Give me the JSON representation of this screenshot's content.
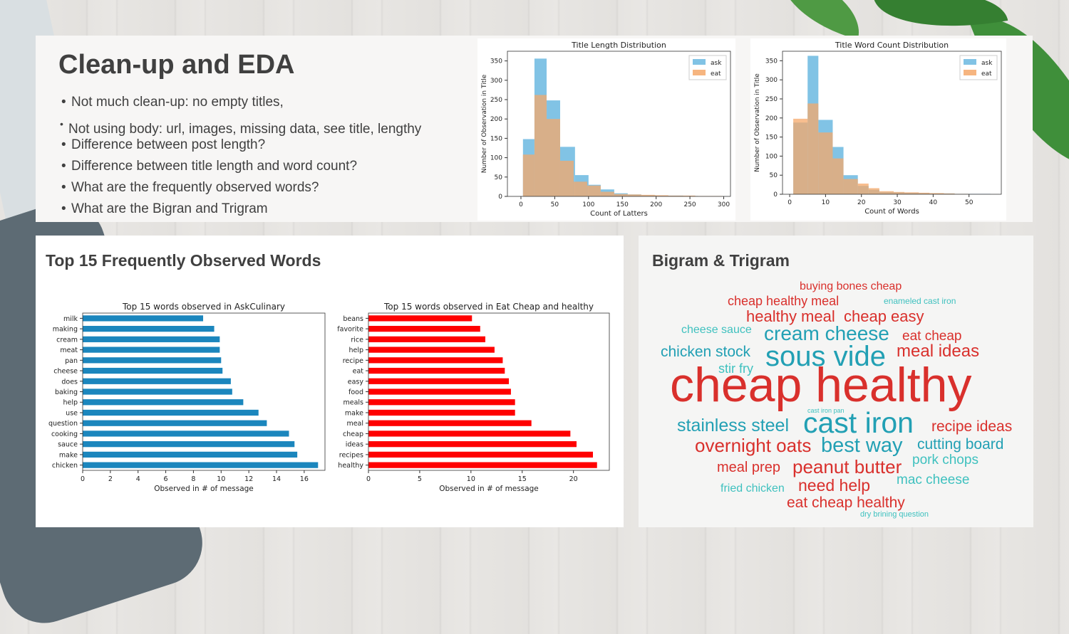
{
  "slide": {
    "title": "Clean-up and EDA",
    "bullets": [
      "Not much clean-up: no empty titles,",
      "Not using body:  url, images, missing data, see title, lengthy",
      "Difference between post length?",
      "Difference between title length and word count?",
      "What are the frequently observed words?",
      "What are the Bigran and Trigram"
    ]
  },
  "sections": {
    "words_title": "Top 15 Frequently Observed Words",
    "bigram_title": "Bigram & Trigram"
  },
  "colors": {
    "ask": "#6bb9e0",
    "eat": "#f5a86a",
    "askculinary_bar": "#1b86bd",
    "eatcheap_bar": "#ff0000",
    "cloud_red": "#d9302c",
    "cloud_teal": "#22a0b4"
  },
  "chart_data": [
    {
      "type": "bar",
      "title": "Title Length Distribution",
      "xlabel": "Count of Latters",
      "ylabel": "Number of Observation in Title",
      "xlim": [
        -20,
        310
      ],
      "ylim": [
        0,
        375
      ],
      "xticks": [
        0,
        50,
        100,
        150,
        200,
        250,
        300
      ],
      "yticks": [
        0,
        50,
        100,
        150,
        200,
        250,
        300,
        350
      ],
      "legend": "top-right",
      "series": [
        {
          "name": "ask",
          "bins": [
            [
              3,
              20,
              148
            ],
            [
              20,
              38,
              356
            ],
            [
              38,
              58,
              248
            ],
            [
              58,
              80,
              128
            ],
            [
              80,
              100,
              55
            ],
            [
              100,
              118,
              30
            ],
            [
              118,
              138,
              18
            ],
            [
              138,
              158,
              8
            ],
            [
              158,
              178,
              5
            ],
            [
              178,
              200,
              3
            ],
            [
              200,
              220,
              2
            ],
            [
              220,
              240,
              2
            ],
            [
              240,
              262,
              1
            ]
          ]
        },
        {
          "name": "eat",
          "bins": [
            [
              3,
              20,
              108
            ],
            [
              20,
              38,
              262
            ],
            [
              38,
              58,
              200
            ],
            [
              58,
              78,
              92
            ],
            [
              78,
              98,
              38
            ],
            [
              98,
              118,
              28
            ],
            [
              118,
              138,
              12
            ],
            [
              138,
              158,
              6
            ],
            [
              158,
              178,
              5
            ],
            [
              178,
              198,
              4
            ],
            [
              198,
              218,
              3
            ],
            [
              218,
              238,
              2
            ],
            [
              238,
              258,
              2
            ],
            [
              258,
              278,
              1
            ],
            [
              278,
              298,
              1
            ]
          ]
        }
      ]
    },
    {
      "type": "bar",
      "title": "Title Word Count Distribution",
      "xlabel": "Count of Words",
      "ylabel": "Number of Observation in Title",
      "xlim": [
        -2,
        59
      ],
      "ylim": [
        0,
        375
      ],
      "xticks": [
        0,
        10,
        20,
        30,
        40,
        50
      ],
      "yticks": [
        0,
        50,
        100,
        150,
        200,
        250,
        300,
        350
      ],
      "legend": "top-right",
      "series": [
        {
          "name": "ask",
          "bins": [
            [
              1,
              5,
              188
            ],
            [
              5,
              8,
              363
            ],
            [
              8,
              12,
              195
            ],
            [
              12,
              15,
              124
            ],
            [
              15,
              19,
              50
            ],
            [
              19,
              22,
              22
            ],
            [
              22,
              25,
              12
            ],
            [
              25,
              29,
              6
            ],
            [
              29,
              32,
              5
            ],
            [
              32,
              36,
              4
            ],
            [
              36,
              39,
              3
            ],
            [
              39,
              43,
              2
            ],
            [
              43,
              46,
              2
            ],
            [
              46,
              50,
              1
            ],
            [
              50,
              53,
              1
            ],
            [
              53,
              56,
              1
            ]
          ]
        },
        {
          "name": "eat",
          "bins": [
            [
              1,
              5,
              198
            ],
            [
              5,
              8,
              238
            ],
            [
              8,
              12,
              162
            ],
            [
              12,
              15,
              94
            ],
            [
              15,
              19,
              40
            ],
            [
              19,
              22,
              28
            ],
            [
              22,
              25,
              16
            ],
            [
              25,
              29,
              8
            ],
            [
              29,
              32,
              6
            ],
            [
              32,
              36,
              5
            ],
            [
              36,
              39,
              4
            ],
            [
              39,
              43,
              3
            ],
            [
              43,
              46,
              2
            ],
            [
              46,
              50,
              1
            ]
          ]
        }
      ]
    },
    {
      "type": "bar",
      "orientation": "horizontal",
      "title": "Top 15 words observed in AskCulinary",
      "xlabel": "Observed in # of message",
      "xlim": [
        0,
        17.5
      ],
      "xticks": [
        0,
        2,
        4,
        6,
        8,
        10,
        12,
        14,
        16
      ],
      "categories": [
        "milk",
        "making",
        "cream",
        "meat",
        "pan",
        "cheese",
        "does",
        "baking",
        "help",
        "use",
        "question",
        "cooking",
        "sauce",
        "make",
        "chicken"
      ],
      "values": [
        8.7,
        9.5,
        9.9,
        9.9,
        10.0,
        10.1,
        10.7,
        10.8,
        11.6,
        12.7,
        13.3,
        14.9,
        15.3,
        15.5,
        17.0
      ]
    },
    {
      "type": "bar",
      "orientation": "horizontal",
      "title": "Top 15 words observed in Eat Cheap and healthy",
      "xlabel": "Observed in # of message",
      "xlim": [
        0,
        23.5
      ],
      "xticks": [
        0,
        5,
        10,
        15,
        20
      ],
      "categories": [
        "beans",
        "favorite",
        "rice",
        "help",
        "recipe",
        "eat",
        "easy",
        "food",
        "meals",
        "make",
        "meal",
        "cheap",
        "ideas",
        "recipes",
        "healthy"
      ],
      "values": [
        10.1,
        10.9,
        11.4,
        12.3,
        13.1,
        13.3,
        13.7,
        13.9,
        14.3,
        14.3,
        15.9,
        19.7,
        20.3,
        21.9,
        22.3
      ]
    }
  ],
  "wordcloud": [
    {
      "text": "buying bones cheap",
      "color": "red"
    },
    {
      "text": "cheap healthy meal",
      "color": "red"
    },
    {
      "text": "enameled cast iron",
      "color": "teal"
    },
    {
      "text": "healthy meal",
      "color": "red"
    },
    {
      "text": "cheap easy",
      "color": "red"
    },
    {
      "text": "cheese sauce",
      "color": "teal"
    },
    {
      "text": "cream cheese",
      "color": "teal"
    },
    {
      "text": "eat cheap",
      "color": "red"
    },
    {
      "text": "chicken stock",
      "color": "teal"
    },
    {
      "text": "sous vide",
      "color": "teal"
    },
    {
      "text": "meal ideas",
      "color": "red"
    },
    {
      "text": "stir fry",
      "color": "teal"
    },
    {
      "text": "cheap healthy",
      "color": "red"
    },
    {
      "text": "cast iron pan",
      "color": "teal"
    },
    {
      "text": "stainless steel",
      "color": "teal"
    },
    {
      "text": "cast iron",
      "color": "teal"
    },
    {
      "text": "recipe ideas",
      "color": "red"
    },
    {
      "text": "overnight oats",
      "color": "red"
    },
    {
      "text": "best way",
      "color": "teal"
    },
    {
      "text": "cutting board",
      "color": "teal"
    },
    {
      "text": "meal prep",
      "color": "red"
    },
    {
      "text": "peanut butter",
      "color": "red"
    },
    {
      "text": "pork chops",
      "color": "teal"
    },
    {
      "text": "mac cheese",
      "color": "teal"
    },
    {
      "text": "fried chicken",
      "color": "teal"
    },
    {
      "text": "need help",
      "color": "red"
    },
    {
      "text": "eat cheap healthy",
      "color": "red"
    },
    {
      "text": "dry brining question",
      "color": "teal"
    }
  ]
}
